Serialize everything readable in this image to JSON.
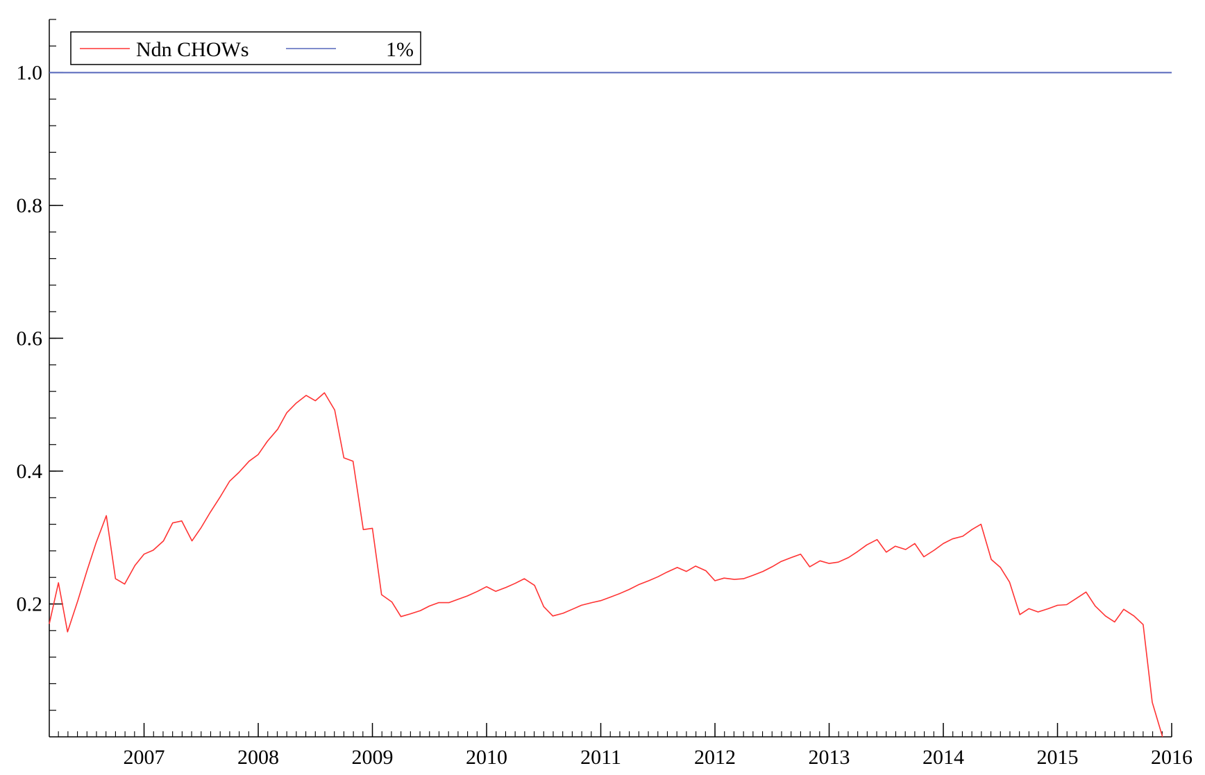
{
  "chart_data": {
    "type": "line",
    "title": "",
    "xlabel": "",
    "ylabel": "",
    "xlim": [
      2006.17,
      2016.0
    ],
    "ylim": [
      0.0,
      1.08
    ],
    "x_ticks": [
      2007,
      2008,
      2009,
      2010,
      2011,
      2012,
      2013,
      2014,
      2015,
      2016
    ],
    "x_tick_labels": [
      "2007",
      "2008",
      "2009",
      "2010",
      "2011",
      "2012",
      "2013",
      "2014",
      "2015",
      "2016"
    ],
    "y_ticks": [
      0.2,
      0.4,
      0.6,
      0.8,
      1.0
    ],
    "y_tick_labels": [
      "0.2",
      "0.4",
      "0.6",
      "0.8",
      "1.0"
    ],
    "grid": false,
    "legend_position": "top-left",
    "series": [
      {
        "name": "Ndn CHOWs",
        "color": "#ff3333",
        "x": [
          2006.17,
          2006.25,
          2006.33,
          2006.42,
          2006.5,
          2006.58,
          2006.67,
          2006.75,
          2006.83,
          2006.92,
          2007.0,
          2007.08,
          2007.17,
          2007.25,
          2007.33,
          2007.42,
          2007.5,
          2007.58,
          2007.67,
          2007.75,
          2007.83,
          2007.92,
          2008.0,
          2008.08,
          2008.17,
          2008.25,
          2008.33,
          2008.42,
          2008.5,
          2008.58,
          2008.67,
          2008.75,
          2008.83,
          2008.92,
          2009.0,
          2009.08,
          2009.17,
          2009.25,
          2009.33,
          2009.42,
          2009.5,
          2009.58,
          2009.67,
          2009.75,
          2009.83,
          2009.92,
          2010.0,
          2010.08,
          2010.17,
          2010.25,
          2010.33,
          2010.42,
          2010.5,
          2010.58,
          2010.67,
          2010.75,
          2010.83,
          2010.92,
          2011.0,
          2011.08,
          2011.17,
          2011.25,
          2011.33,
          2011.42,
          2011.5,
          2011.58,
          2011.67,
          2011.75,
          2011.83,
          2011.92,
          2012.0,
          2012.08,
          2012.17,
          2012.25,
          2012.33,
          2012.42,
          2012.5,
          2012.58,
          2012.67,
          2012.75,
          2012.83,
          2012.92,
          2013.0,
          2013.08,
          2013.17,
          2013.25,
          2013.33,
          2013.42,
          2013.5,
          2013.58,
          2013.67,
          2013.75,
          2013.83,
          2013.92,
          2014.0,
          2014.08,
          2014.17,
          2014.25,
          2014.33,
          2014.42,
          2014.5,
          2014.58,
          2014.67,
          2014.75,
          2014.83,
          2014.92,
          2015.0,
          2015.08,
          2015.17,
          2015.25,
          2015.33,
          2015.42,
          2015.5,
          2015.58,
          2015.67,
          2015.75,
          2015.83,
          2015.92
        ],
        "values": [
          0.17,
          0.232,
          0.158,
          0.205,
          0.25,
          0.292,
          0.333,
          0.238,
          0.23,
          0.258,
          0.275,
          0.281,
          0.295,
          0.322,
          0.325,
          0.295,
          0.315,
          0.338,
          0.362,
          0.385,
          0.398,
          0.415,
          0.425,
          0.445,
          0.463,
          0.488,
          0.502,
          0.514,
          0.506,
          0.518,
          0.492,
          0.42,
          0.415,
          0.312,
          0.314,
          0.214,
          0.203,
          0.181,
          0.185,
          0.19,
          0.197,
          0.202,
          0.202,
          0.207,
          0.212,
          0.219,
          0.226,
          0.219,
          0.225,
          0.231,
          0.238,
          0.228,
          0.196,
          0.182,
          0.186,
          0.192,
          0.198,
          0.202,
          0.205,
          0.21,
          0.216,
          0.222,
          0.229,
          0.235,
          0.241,
          0.248,
          0.255,
          0.249,
          0.257,
          0.25,
          0.235,
          0.239,
          0.237,
          0.238,
          0.243,
          0.249,
          0.256,
          0.264,
          0.27,
          0.275,
          0.256,
          0.265,
          0.261,
          0.263,
          0.27,
          0.279,
          0.289,
          0.297,
          0.278,
          0.287,
          0.282,
          0.291,
          0.271,
          0.281,
          0.291,
          0.298,
          0.302,
          0.312,
          0.32,
          0.267,
          0.255,
          0.233,
          0.184,
          0.193,
          0.188,
          0.193,
          0.198,
          0.199,
          0.209,
          0.218,
          0.197,
          0.182,
          0.173,
          0.192,
          0.182,
          0.169,
          0.052,
          0.0
        ]
      },
      {
        "name": "1%",
        "color": "#5566bb",
        "x": [
          2006.17,
          2016.0
        ],
        "values": [
          1.0,
          1.0
        ]
      }
    ]
  }
}
